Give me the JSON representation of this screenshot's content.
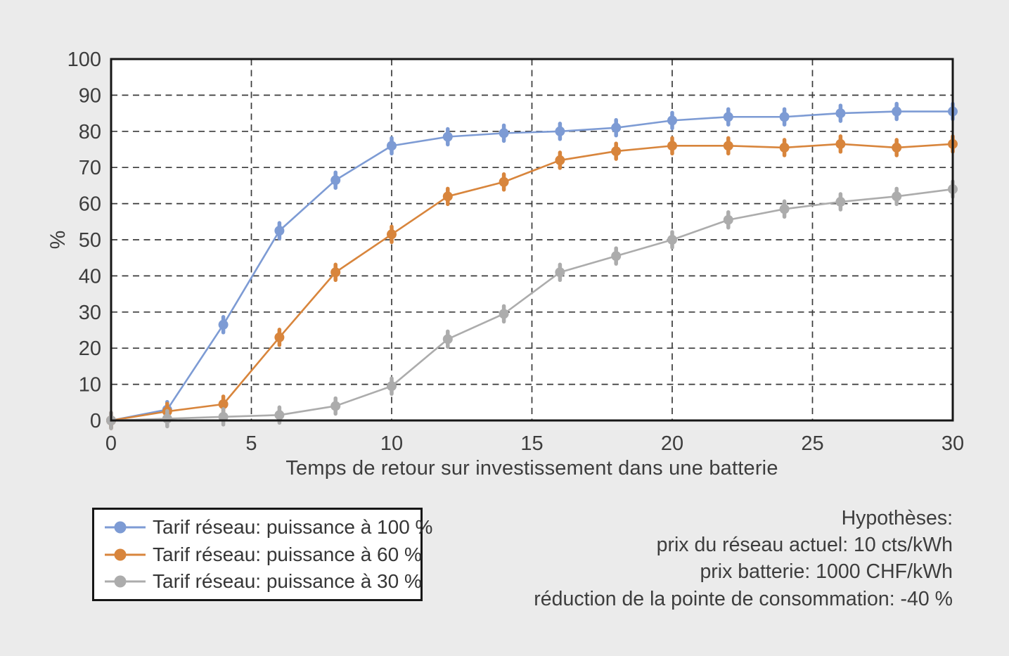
{
  "chart_data": {
    "type": "line",
    "title": "",
    "xlabel": "Temps de retour sur investissement dans une batterie",
    "ylabel": "%",
    "xlim": [
      0,
      30
    ],
    "ylim": [
      0,
      100
    ],
    "x_ticks": [
      0,
      5,
      10,
      15,
      20,
      25,
      30
    ],
    "y_ticks": [
      0,
      10,
      20,
      30,
      40,
      50,
      60,
      70,
      80,
      90,
      100
    ],
    "grid": "dashed",
    "legend_position": "bottom-left",
    "x": [
      0,
      2,
      4,
      6,
      8,
      10,
      12,
      14,
      16,
      18,
      20,
      22,
      24,
      26,
      28,
      30
    ],
    "series": [
      {
        "name": "Tarif réseau: puissance à 100 %",
        "color": "#7d9bd4",
        "values": [
          0,
          3,
          26.5,
          52.5,
          66.5,
          76,
          78.5,
          79.5,
          80,
          81,
          83,
          84,
          84,
          85,
          85.5,
          85.5
        ]
      },
      {
        "name": "Tarif réseau: puissance à 60 %",
        "color": "#d8853c",
        "values": [
          0,
          2.5,
          4.5,
          23,
          41,
          51.5,
          62,
          66,
          72,
          74.5,
          76,
          76,
          75.5,
          76.5,
          75.5,
          76.5
        ]
      },
      {
        "name": "Tarif réseau: puissance à 30 %",
        "color": "#acacac",
        "values": [
          0,
          0.5,
          1,
          1.5,
          4,
          9.5,
          22.5,
          29.5,
          41,
          45.5,
          50,
          55.5,
          58.5,
          60.5,
          62,
          64
        ]
      }
    ]
  },
  "annotations": {
    "title": "Hypothèses:",
    "lines": [
      "prix du réseau actuel: 10 cts/kWh",
      "prix batterie: 1000 CHF/kWh",
      "réduction de la pointe de consommation: -40 %"
    ]
  },
  "colors": {
    "background": "#ebebeb",
    "plot_background": "#ffffff",
    "grid": "#3a3a3a",
    "border": "#161616",
    "text": "#3d3d3d"
  }
}
